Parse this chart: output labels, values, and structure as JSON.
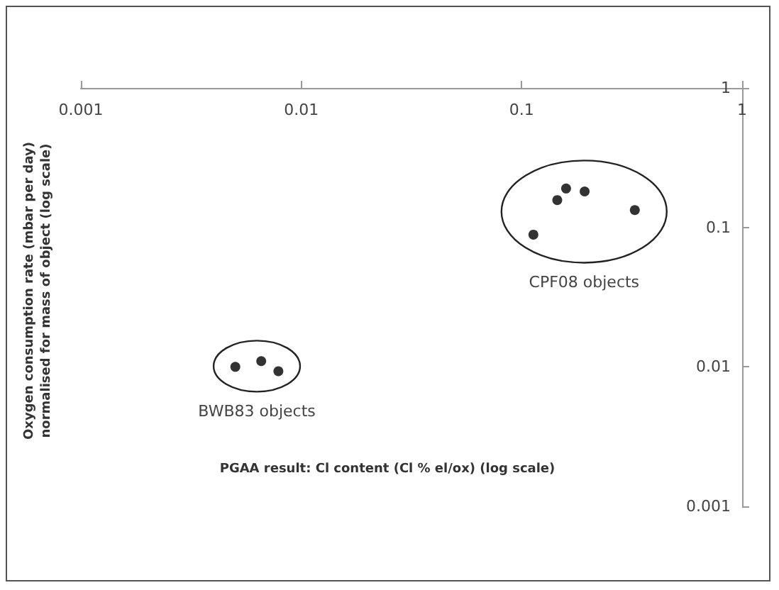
{
  "chart_data": {
    "type": "scatter",
    "xlabel": "PGAA result: Cl content (Cl % el/ox) (log scale)",
    "ylabel": "Oxygen consumption rate (mbar per day)\nnormalised for mass of object (log scale)",
    "log": "xy",
    "xlim": [
      0.001,
      1
    ],
    "ylim": [
      0.001,
      1
    ],
    "xticks": [
      0.001,
      0.01,
      0.1,
      1
    ],
    "yticks": [
      0.001,
      0.01,
      0.1,
      1
    ],
    "grid": false,
    "marker": "circle",
    "series": [
      {
        "color": "#000000",
        "x": [
          0.113,
          0.145,
          0.159,
          0.193,
          0.326,
          0.00502,
          0.00658,
          0.00787
        ],
        "values": [
          0.0887,
          0.157,
          0.19,
          0.181,
          0.133,
          0.01,
          0.011,
          0.0093
        ]
      }
    ],
    "annotations": [
      "CPF08 objects",
      "BWB83 objects"
    ]
  }
}
